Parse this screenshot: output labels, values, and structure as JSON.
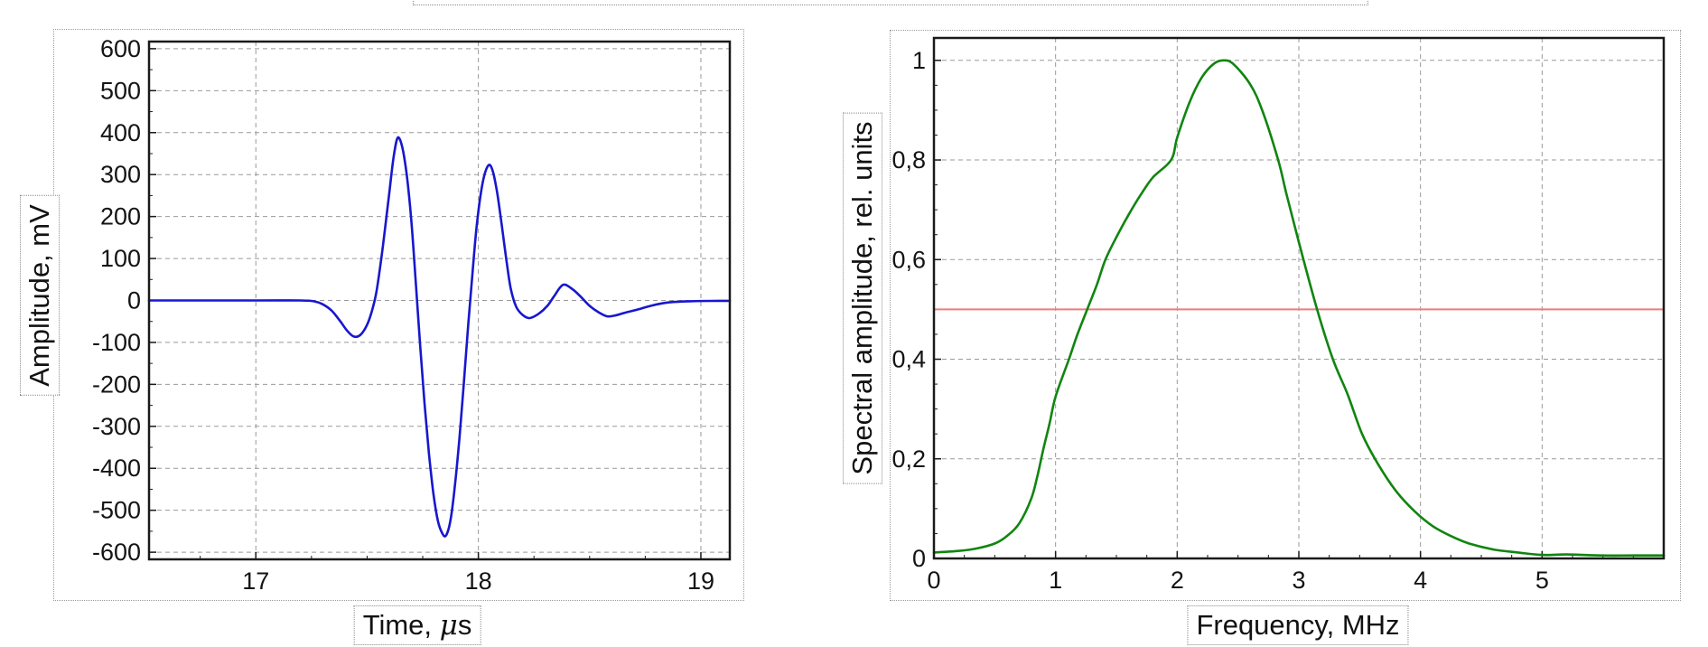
{
  "chart_data": [
    {
      "id": "waveform",
      "type": "line",
      "title": "",
      "xlabel_pre": "Time, ",
      "xlabel_mu": "μ",
      "xlabel_post": "s",
      "ylabel": "Amplitude, mV",
      "xlabel_full": "Time, μs",
      "x_unit": "μs",
      "y_unit": "mV",
      "xlim": [
        16.52,
        19.13
      ],
      "ylim": [
        -617,
        617
      ],
      "grid": true,
      "legend": "none",
      "x_ticks": [
        {
          "v": 17,
          "label": "17"
        },
        {
          "v": 18,
          "label": "18"
        },
        {
          "v": 19,
          "label": "19"
        }
      ],
      "y_ticks": [
        {
          "v": 600,
          "label": "600"
        },
        {
          "v": 500,
          "label": "500"
        },
        {
          "v": 400,
          "label": "400"
        },
        {
          "v": 300,
          "label": "300"
        },
        {
          "v": 200,
          "label": "200"
        },
        {
          "v": 100,
          "label": "100"
        },
        {
          "v": 0,
          "label": "0"
        },
        {
          "v": -100,
          "label": "-100"
        },
        {
          "v": -200,
          "label": "-200"
        },
        {
          "v": -300,
          "label": "-300"
        },
        {
          "v": -400,
          "label": "-400"
        },
        {
          "v": -500,
          "label": "-500"
        },
        {
          "v": -600,
          "label": "-600"
        }
      ],
      "x_minor_step": 0.25,
      "y_minor_step": 50,
      "series": [
        {
          "name": "pulse-waveform",
          "color": "#1717CE",
          "width": 2.6,
          "smooth": true,
          "points": [
            [
              16.52,
              0
            ],
            [
              17.0,
              0
            ],
            [
              17.2,
              0
            ],
            [
              17.26,
              -2
            ],
            [
              17.3,
              -9
            ],
            [
              17.34,
              -24
            ],
            [
              17.38,
              -50
            ],
            [
              17.41,
              -72
            ],
            [
              17.44,
              -86
            ],
            [
              17.47,
              -82
            ],
            [
              17.5,
              -58
            ],
            [
              17.52,
              -28
            ],
            [
              17.54,
              15
            ],
            [
              17.56,
              85
            ],
            [
              17.58,
              168
            ],
            [
              17.6,
              258
            ],
            [
              17.62,
              345
            ],
            [
              17.638,
              388
            ],
            [
              17.658,
              365
            ],
            [
              17.678,
              300
            ],
            [
              17.698,
              195
            ],
            [
              17.718,
              50
            ],
            [
              17.738,
              -105
            ],
            [
              17.758,
              -245
            ],
            [
              17.778,
              -365
            ],
            [
              17.798,
              -460
            ],
            [
              17.818,
              -525
            ],
            [
              17.838,
              -555
            ],
            [
              17.855,
              -560
            ],
            [
              17.875,
              -523
            ],
            [
              17.895,
              -440
            ],
            [
              17.915,
              -328
            ],
            [
              17.935,
              -195
            ],
            [
              17.955,
              -55
            ],
            [
              17.975,
              75
            ],
            [
              17.995,
              190
            ],
            [
              18.02,
              282
            ],
            [
              18.045,
              322
            ],
            [
              18.065,
              308
            ],
            [
              18.085,
              255
            ],
            [
              18.105,
              180
            ],
            [
              18.125,
              100
            ],
            [
              18.145,
              30
            ],
            [
              18.17,
              -15
            ],
            [
              18.2,
              -35
            ],
            [
              18.23,
              -42
            ],
            [
              18.27,
              -32
            ],
            [
              18.31,
              -13
            ],
            [
              18.34,
              10
            ],
            [
              18.38,
              37
            ],
            [
              18.42,
              28
            ],
            [
              18.46,
              9
            ],
            [
              18.5,
              -13
            ],
            [
              18.54,
              -28
            ],
            [
              18.58,
              -38
            ],
            [
              18.62,
              -35
            ],
            [
              18.66,
              -29
            ],
            [
              18.72,
              -21
            ],
            [
              18.78,
              -12
            ],
            [
              18.85,
              -5
            ],
            [
              18.95,
              -2
            ],
            [
              19.05,
              -1
            ],
            [
              19.13,
              -1
            ]
          ]
        }
      ]
    },
    {
      "id": "spectrum",
      "type": "line",
      "title": "",
      "xlabel": "Frequency, MHz",
      "ylabel": "Spectral amplitude, rel. units",
      "x_unit": "MHz",
      "y_unit": "rel. units",
      "xlim": [
        0,
        6
      ],
      "ylim": [
        0,
        1.045
      ],
      "grid": true,
      "legend": "none",
      "x_ticks": [
        {
          "v": 0,
          "label": "0"
        },
        {
          "v": 1,
          "label": "1"
        },
        {
          "v": 2,
          "label": "2"
        },
        {
          "v": 3,
          "label": "3"
        },
        {
          "v": 4,
          "label": "4"
        },
        {
          "v": 5,
          "label": "5"
        }
      ],
      "y_ticks": [
        {
          "v": 0,
          "label": "0"
        },
        {
          "v": 0.2,
          "label": "0,2"
        },
        {
          "v": 0.4,
          "label": "0,4"
        },
        {
          "v": 0.6,
          "label": "0,6"
        },
        {
          "v": 0.8,
          "label": "0,8"
        },
        {
          "v": 1,
          "label": "1"
        }
      ],
      "x_minor_step": 0.25,
      "y_minor_step": 0.05,
      "annotations": [
        {
          "name": "half-level",
          "value": 0.5,
          "color": "#EA7E7E"
        }
      ],
      "series": [
        {
          "name": "half-level-line",
          "color": "#EA7E7E",
          "width": 2,
          "smooth": false,
          "points": [
            [
              0,
              0.5
            ],
            [
              6,
              0.5
            ]
          ]
        },
        {
          "name": "spectrum-curve",
          "color": "#108510",
          "width": 2.6,
          "smooth": true,
          "points": [
            [
              0,
              0.012
            ],
            [
              0.2,
              0.015
            ],
            [
              0.35,
              0.02
            ],
            [
              0.5,
              0.03
            ],
            [
              0.6,
              0.045
            ],
            [
              0.7,
              0.07
            ],
            [
              0.8,
              0.12
            ],
            [
              0.85,
              0.165
            ],
            [
              0.9,
              0.22
            ],
            [
              0.95,
              0.27
            ],
            [
              1.0,
              0.325
            ],
            [
              1.11,
              0.4
            ],
            [
              1.18,
              0.45
            ],
            [
              1.26,
              0.5
            ],
            [
              1.34,
              0.55
            ],
            [
              1.41,
              0.6
            ],
            [
              1.5,
              0.645
            ],
            [
              1.6,
              0.69
            ],
            [
              1.7,
              0.73
            ],
            [
              1.8,
              0.765
            ],
            [
              1.95,
              0.8
            ],
            [
              2.0,
              0.845
            ],
            [
              2.1,
              0.915
            ],
            [
              2.2,
              0.965
            ],
            [
              2.3,
              0.993
            ],
            [
              2.38,
              1.0
            ],
            [
              2.46,
              0.993
            ],
            [
              2.6,
              0.952
            ],
            [
              2.7,
              0.899
            ],
            [
              2.83,
              0.8
            ],
            [
              2.9,
              0.73
            ],
            [
              3.0,
              0.635
            ],
            [
              3.15,
              0.5
            ],
            [
              3.28,
              0.4
            ],
            [
              3.4,
              0.33
            ],
            [
              3.52,
              0.25
            ],
            [
              3.65,
              0.19
            ],
            [
              3.8,
              0.135
            ],
            [
              3.95,
              0.095
            ],
            [
              4.1,
              0.065
            ],
            [
              4.25,
              0.045
            ],
            [
              4.4,
              0.03
            ],
            [
              4.6,
              0.018
            ],
            [
              4.8,
              0.012
            ],
            [
              5.0,
              0.007
            ],
            [
              5.2,
              0.008
            ],
            [
              5.5,
              0.006
            ],
            [
              5.75,
              0.006
            ],
            [
              6.0,
              0.006
            ]
          ]
        }
      ]
    }
  ],
  "style": {
    "frame_color": "#1a1a1a",
    "grid_color": "#999999",
    "tick_label_color": "#141414",
    "tick_font_px": 27
  }
}
